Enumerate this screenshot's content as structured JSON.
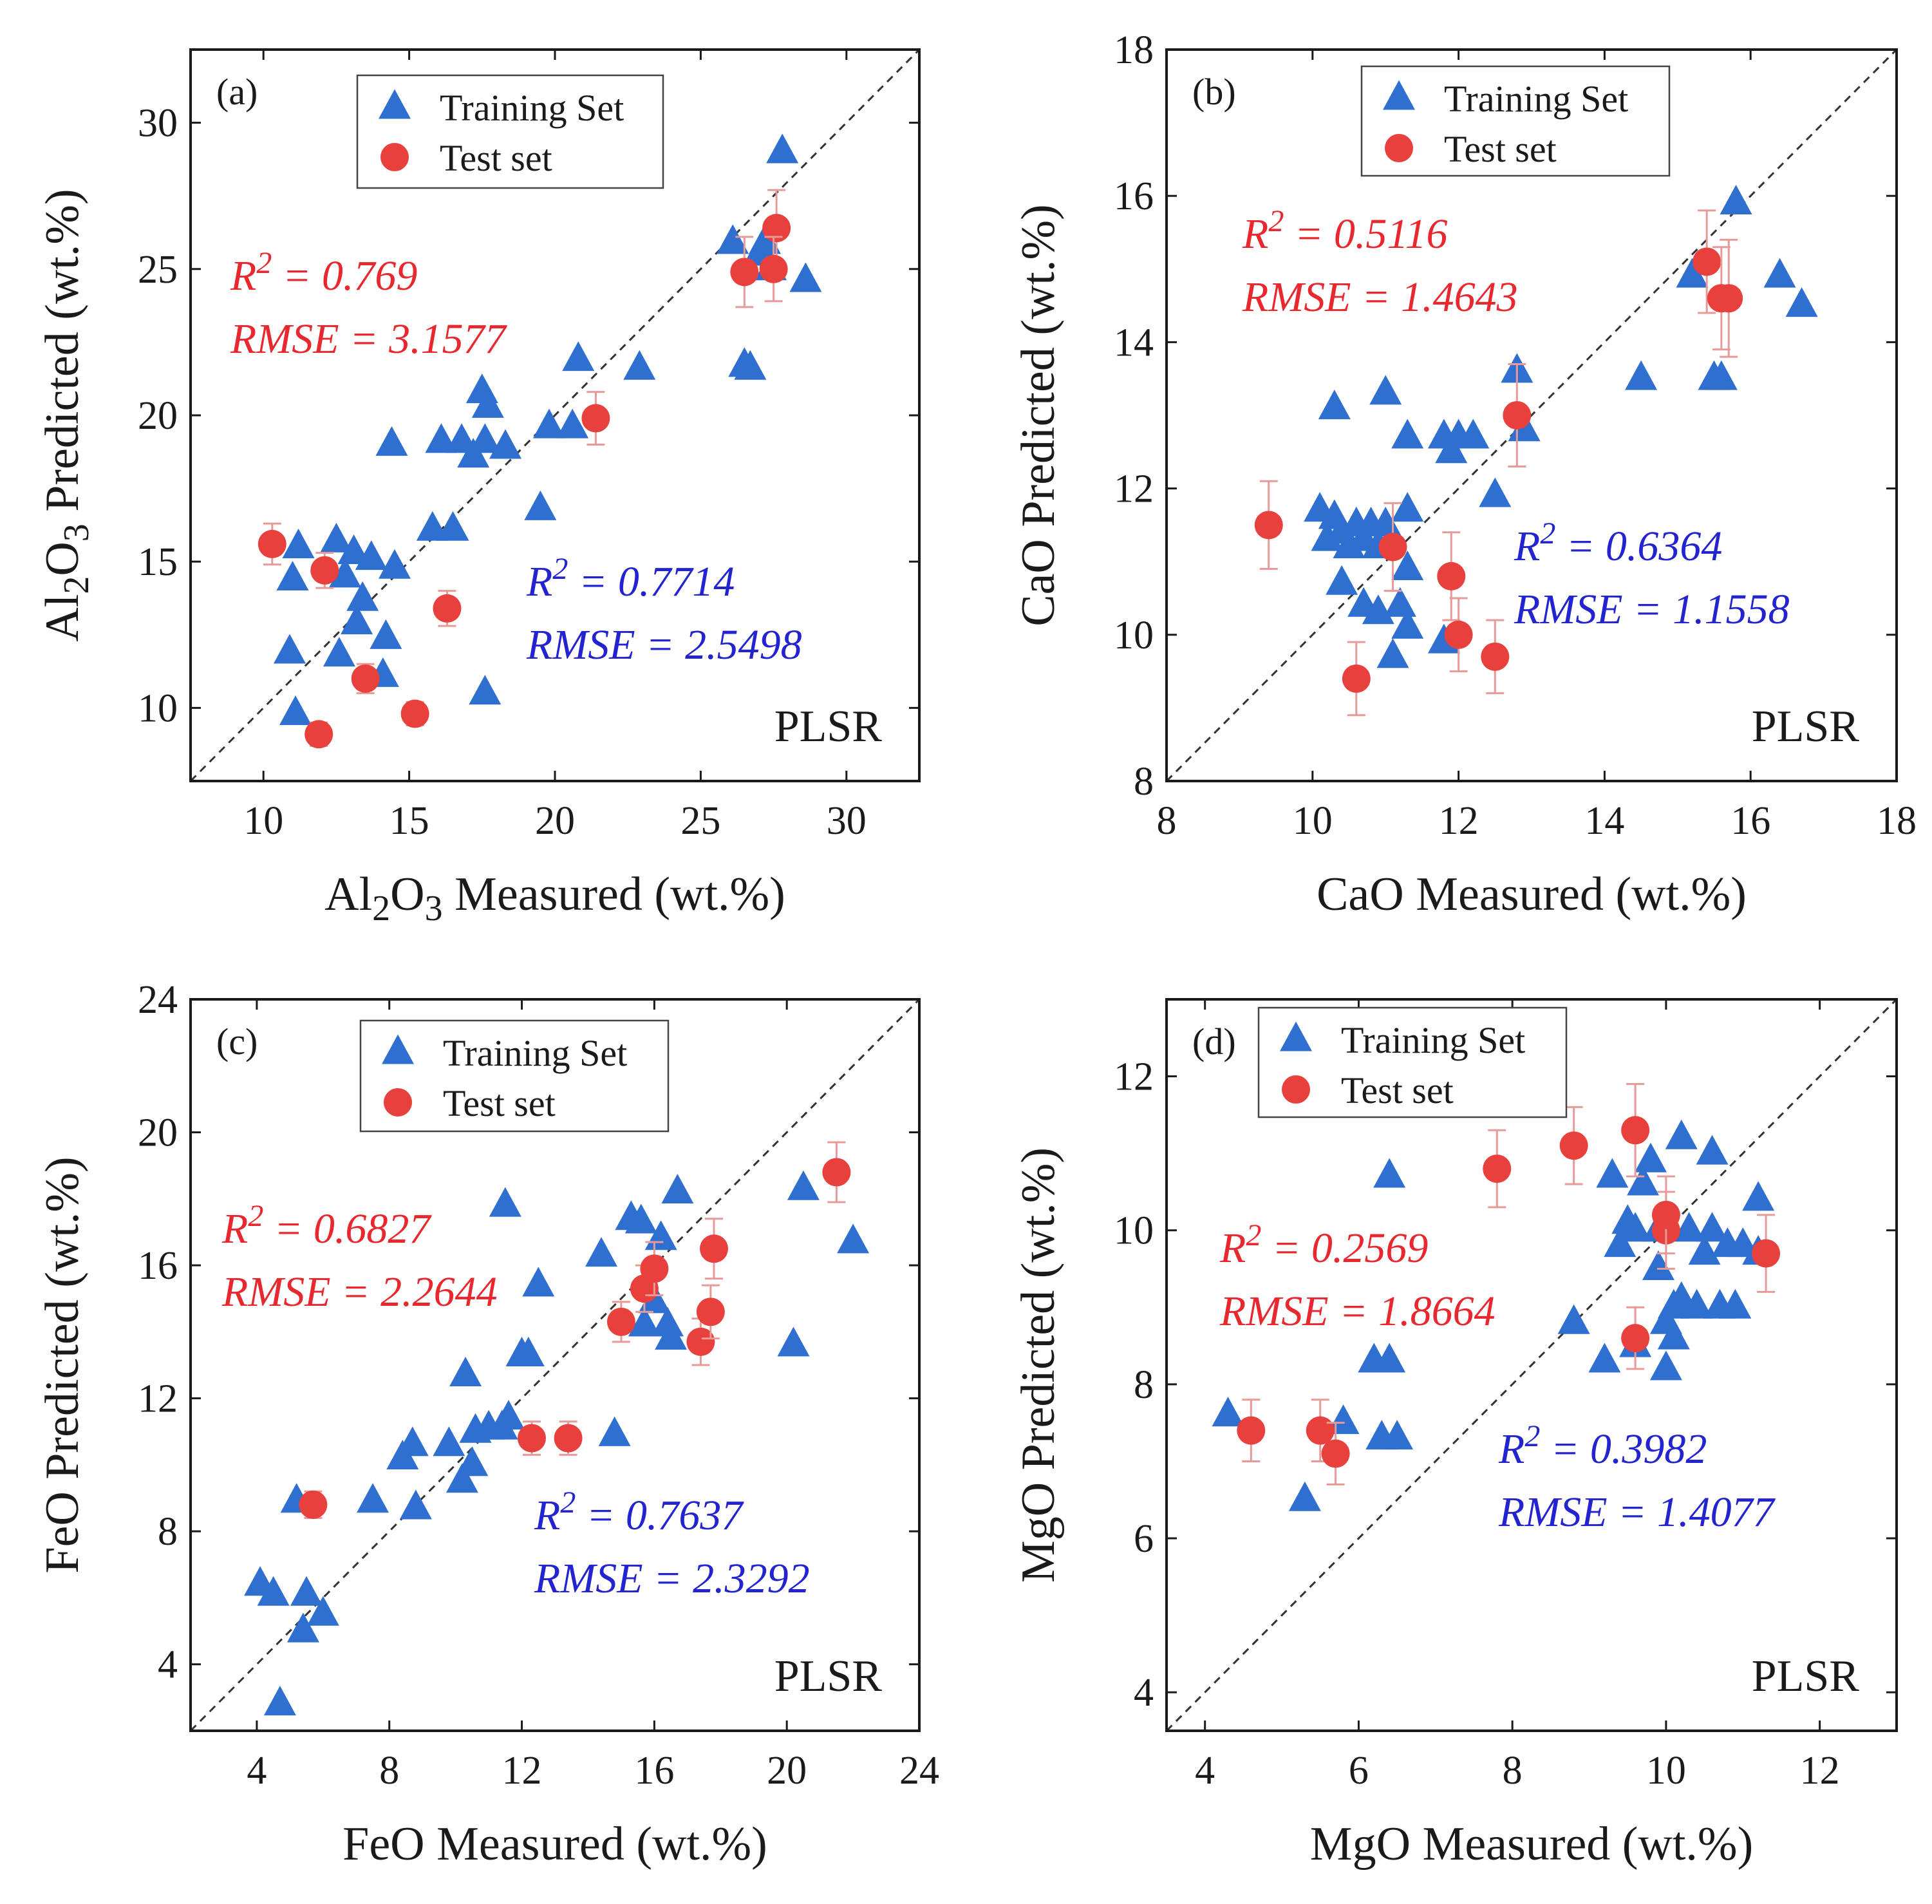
{
  "colors": {
    "training": "#2f6fd0",
    "test": "#e8403d",
    "error_bar": "#e89a98",
    "stat_train": "#2323d0",
    "stat_test": "#e8282e",
    "axis": "#1a1a1a",
    "reference_line": "#333333"
  },
  "legend": {
    "training_label": "Training Set",
    "test_label": "Test set"
  },
  "chart_data": [
    {
      "id": "a",
      "type": "scatter",
      "panel_label": "(a)",
      "method": "PLSR",
      "xlabel": {
        "prefix": "Al",
        "sub1": "2",
        "mid": "O",
        "sub2": "3",
        "suffix": " Measured (wt.%)"
      },
      "ylabel": {
        "prefix": "Al",
        "sub1": "2",
        "mid": "O",
        "sub2": "3",
        "suffix": " Predicted (wt.%)"
      },
      "xlim": [
        7.5,
        32.5
      ],
      "ylim": [
        7.5,
        32.5
      ],
      "xticks": [
        10,
        15,
        20,
        25,
        30
      ],
      "yticks": [
        10,
        15,
        20,
        25,
        30
      ],
      "train_stats": {
        "r2": "R2 = 0.7714",
        "rmse": "RMSE = 2.5498"
      },
      "test_stats": {
        "r2": "R2 = 0.769",
        "rmse": "RMSE = 3.1577"
      },
      "training": [
        [
          11.2,
          15.5
        ],
        [
          11.0,
          14.4
        ],
        [
          10.9,
          11.9
        ],
        [
          11.1,
          9.8
        ],
        [
          12.5,
          15.7
        ],
        [
          12.8,
          14.5
        ],
        [
          13.1,
          15.3
        ],
        [
          13.4,
          13.7
        ],
        [
          13.2,
          12.9
        ],
        [
          12.6,
          11.8
        ],
        [
          13.7,
          15.1
        ],
        [
          14.1,
          11.1
        ],
        [
          14.2,
          12.4
        ],
        [
          14.5,
          14.8
        ],
        [
          14.4,
          19.0
        ],
        [
          15.8,
          16.1
        ],
        [
          16.1,
          19.1
        ],
        [
          16.5,
          16.1
        ],
        [
          16.8,
          19.1
        ],
        [
          17.2,
          18.6
        ],
        [
          17.5,
          20.8
        ],
        [
          17.7,
          20.3
        ],
        [
          17.6,
          19.1
        ],
        [
          18.3,
          18.9
        ],
        [
          17.6,
          10.5
        ],
        [
          19.5,
          16.8
        ],
        [
          19.8,
          19.6
        ],
        [
          20.6,
          19.6
        ],
        [
          20.8,
          21.9
        ],
        [
          22.9,
          21.6
        ],
        [
          26.1,
          25.9
        ],
        [
          26.5,
          21.7
        ],
        [
          26.7,
          21.6
        ],
        [
          27.0,
          25.5
        ],
        [
          27.2,
          25.9
        ],
        [
          27.4,
          25.0
        ],
        [
          27.8,
          29.0
        ],
        [
          28.6,
          24.6
        ]
      ],
      "test": [
        [
          10.3,
          15.6,
          0.7
        ],
        [
          12.1,
          14.7,
          0.6
        ],
        [
          13.5,
          11.0,
          0.5
        ],
        [
          15.2,
          9.8,
          0.4
        ],
        [
          16.3,
          13.4,
          0.6
        ],
        [
          11.9,
          9.1,
          0.4
        ],
        [
          21.4,
          19.9,
          0.9
        ],
        [
          26.5,
          24.9,
          1.2
        ],
        [
          27.6,
          26.4,
          1.3
        ],
        [
          27.5,
          25.0,
          1.1
        ]
      ]
    },
    {
      "id": "b",
      "type": "scatter",
      "panel_label": "(b)",
      "method": "PLSR",
      "xlabel": {
        "prefix": "CaO",
        "sub1": "",
        "mid": "",
        "sub2": "",
        "suffix": " Measured (wt.%)"
      },
      "ylabel": {
        "prefix": "CaO",
        "sub1": "",
        "mid": "",
        "sub2": "",
        "suffix": " Predicted (wt.%)"
      },
      "xlim": [
        8,
        18
      ],
      "ylim": [
        8,
        18
      ],
      "xticks": [
        8,
        10,
        12,
        14,
        16,
        18
      ],
      "yticks": [
        8,
        10,
        12,
        14,
        16,
        18
      ],
      "train_stats": {
        "r2": "R2 = 0.6364",
        "rmse": "RMSE = 1.1558"
      },
      "test_stats": {
        "r2": "R2 = 0.5116",
        "rmse": "RMSE = 1.4643"
      },
      "training": [
        [
          10.1,
          11.7
        ],
        [
          10.2,
          11.3
        ],
        [
          10.3,
          11.6
        ],
        [
          10.4,
          11.4
        ],
        [
          10.5,
          11.2
        ],
        [
          10.6,
          11.5
        ],
        [
          10.7,
          11.3
        ],
        [
          10.8,
          11.5
        ],
        [
          10.9,
          11.2
        ],
        [
          11.0,
          11.5
        ],
        [
          10.3,
          13.1
        ],
        [
          10.4,
          10.7
        ],
        [
          10.7,
          10.4
        ],
        [
          10.9,
          10.3
        ],
        [
          11.0,
          13.3
        ],
        [
          11.1,
          9.7
        ],
        [
          11.2,
          10.4
        ],
        [
          11.3,
          10.1
        ],
        [
          11.3,
          10.9
        ],
        [
          11.3,
          11.7
        ],
        [
          11.3,
          12.7
        ],
        [
          11.8,
          9.9
        ],
        [
          11.8,
          12.7
        ],
        [
          11.9,
          12.5
        ],
        [
          12.0,
          12.7
        ],
        [
          12.2,
          12.7
        ],
        [
          12.5,
          11.9
        ],
        [
          12.8,
          13.6
        ],
        [
          12.9,
          12.8
        ],
        [
          14.5,
          13.5
        ],
        [
          15.2,
          14.9
        ],
        [
          15.5,
          13.5
        ],
        [
          15.6,
          13.5
        ],
        [
          15.8,
          15.9
        ],
        [
          16.4,
          14.9
        ],
        [
          16.7,
          14.5
        ]
      ],
      "test": [
        [
          9.4,
          11.5,
          0.6
        ],
        [
          10.6,
          9.4,
          0.5
        ],
        [
          11.1,
          11.2,
          0.6
        ],
        [
          11.9,
          10.8,
          0.6
        ],
        [
          12.0,
          10.0,
          0.5
        ],
        [
          12.5,
          9.7,
          0.5
        ],
        [
          12.8,
          13.0,
          0.7
        ],
        [
          15.4,
          15.1,
          0.7
        ],
        [
          15.6,
          14.6,
          0.7
        ],
        [
          15.7,
          14.6,
          0.8
        ]
      ]
    },
    {
      "id": "c",
      "type": "scatter",
      "panel_label": "(c)",
      "method": "PLSR",
      "xlabel": {
        "prefix": "FeO",
        "sub1": "",
        "mid": "",
        "sub2": "",
        "suffix": " Measured (wt.%)"
      },
      "ylabel": {
        "prefix": "FeO",
        "sub1": "",
        "mid": "",
        "sub2": "",
        "suffix": " Predicted (wt.%)"
      },
      "xlim": [
        2,
        24
      ],
      "ylim": [
        2,
        24
      ],
      "xticks": [
        4,
        8,
        12,
        16,
        20,
        24
      ],
      "yticks": [
        4,
        8,
        12,
        16,
        20,
        24
      ],
      "train_stats": {
        "r2": "R2 = 0.7637",
        "rmse": "RMSE = 2.3292"
      },
      "test_stats": {
        "r2": "R2 = 0.6827",
        "rmse": "RMSE = 2.2644"
      },
      "training": [
        [
          4.1,
          6.4
        ],
        [
          4.5,
          6.1
        ],
        [
          4.7,
          2.8
        ],
        [
          5.2,
          8.9
        ],
        [
          5.4,
          5.0
        ],
        [
          5.5,
          6.1
        ],
        [
          6.0,
          5.5
        ],
        [
          7.5,
          8.9
        ],
        [
          8.4,
          10.2
        ],
        [
          8.7,
          10.6
        ],
        [
          8.8,
          8.7
        ],
        [
          9.8,
          10.6
        ],
        [
          10.2,
          9.5
        ],
        [
          10.3,
          12.7
        ],
        [
          10.5,
          10.0
        ],
        [
          10.6,
          11.0
        ],
        [
          11.0,
          11.1
        ],
        [
          11.4,
          11.1
        ],
        [
          11.5,
          17.8
        ],
        [
          11.6,
          11.4
        ],
        [
          12.0,
          13.3
        ],
        [
          12.2,
          13.3
        ],
        [
          12.5,
          15.4
        ],
        [
          14.4,
          16.3
        ],
        [
          14.8,
          10.9
        ],
        [
          15.3,
          17.4
        ],
        [
          15.6,
          17.3
        ],
        [
          15.7,
          14.2
        ],
        [
          16.0,
          14.9
        ],
        [
          16.2,
          16.8
        ],
        [
          16.4,
          14.2
        ],
        [
          16.5,
          13.8
        ],
        [
          16.7,
          18.2
        ],
        [
          20.2,
          13.6
        ],
        [
          20.5,
          18.3
        ],
        [
          22.0,
          16.7
        ]
      ],
      "test": [
        [
          5.7,
          8.8,
          0.4
        ],
        [
          12.3,
          10.8,
          0.5
        ],
        [
          13.4,
          10.8,
          0.5
        ],
        [
          15.0,
          14.3,
          0.6
        ],
        [
          15.7,
          15.3,
          0.7
        ],
        [
          16.0,
          15.9,
          0.8
        ],
        [
          17.4,
          13.7,
          0.7
        ],
        [
          17.7,
          14.6,
          0.8
        ],
        [
          17.8,
          16.5,
          0.9
        ],
        [
          21.5,
          18.8,
          0.9
        ]
      ]
    },
    {
      "id": "d",
      "type": "scatter",
      "panel_label": "(d)",
      "method": "PLSR",
      "xlabel": {
        "prefix": "MgO",
        "sub1": "",
        "mid": "",
        "sub2": "",
        "suffix": " Measured (wt.%)"
      },
      "ylabel": {
        "prefix": "MgO",
        "sub1": "",
        "mid": "",
        "sub2": "",
        "suffix": " Predicted (wt.%)"
      },
      "xlim": [
        3.5,
        13
      ],
      "ylim": [
        3.5,
        13
      ],
      "xticks": [
        4,
        6,
        8,
        10,
        12
      ],
      "yticks": [
        4,
        6,
        8,
        10,
        12
      ],
      "train_stats": {
        "r2": "R2 = 0.3982",
        "rmse": "RMSE = 1.4077"
      },
      "test_stats": {
        "r2": "R2 = 0.2569",
        "rmse": "RMSE = 1.8664"
      },
      "training": [
        [
          4.3,
          7.6
        ],
        [
          5.3,
          6.5
        ],
        [
          5.8,
          7.5
        ],
        [
          6.2,
          8.3
        ],
        [
          6.3,
          7.3
        ],
        [
          6.4,
          8.3
        ],
        [
          6.4,
          10.7
        ],
        [
          6.5,
          7.3
        ],
        [
          8.8,
          8.8
        ],
        [
          9.2,
          8.3
        ],
        [
          9.3,
          10.7
        ],
        [
          9.4,
          9.8
        ],
        [
          9.5,
          10.1
        ],
        [
          9.6,
          8.5
        ],
        [
          9.6,
          10.0
        ],
        [
          9.7,
          10.6
        ],
        [
          9.8,
          10.9
        ],
        [
          9.9,
          9.5
        ],
        [
          9.9,
          10.0
        ],
        [
          10.0,
          8.2
        ],
        [
          10.0,
          8.8
        ],
        [
          10.1,
          9.0
        ],
        [
          10.1,
          8.6
        ],
        [
          10.2,
          9.1
        ],
        [
          10.2,
          11.2
        ],
        [
          10.3,
          10.0
        ],
        [
          10.4,
          9.0
        ],
        [
          10.5,
          9.7
        ],
        [
          10.6,
          11.0
        ],
        [
          10.6,
          10.0
        ],
        [
          10.7,
          9.0
        ],
        [
          10.8,
          9.8
        ],
        [
          10.9,
          9.0
        ],
        [
          11.0,
          9.8
        ],
        [
          11.2,
          10.4
        ],
        [
          11.2,
          9.7
        ]
      ],
      "test": [
        [
          4.6,
          7.4,
          0.4
        ],
        [
          5.5,
          7.4,
          0.4
        ],
        [
          5.7,
          7.1,
          0.4
        ],
        [
          7.8,
          10.8,
          0.5
        ],
        [
          8.8,
          11.1,
          0.5
        ],
        [
          9.6,
          11.3,
          0.6
        ],
        [
          9.6,
          8.6,
          0.4
        ],
        [
          10.0,
          10.0,
          0.5
        ],
        [
          10.0,
          10.2,
          0.5
        ],
        [
          11.3,
          9.7,
          0.5
        ]
      ]
    }
  ]
}
